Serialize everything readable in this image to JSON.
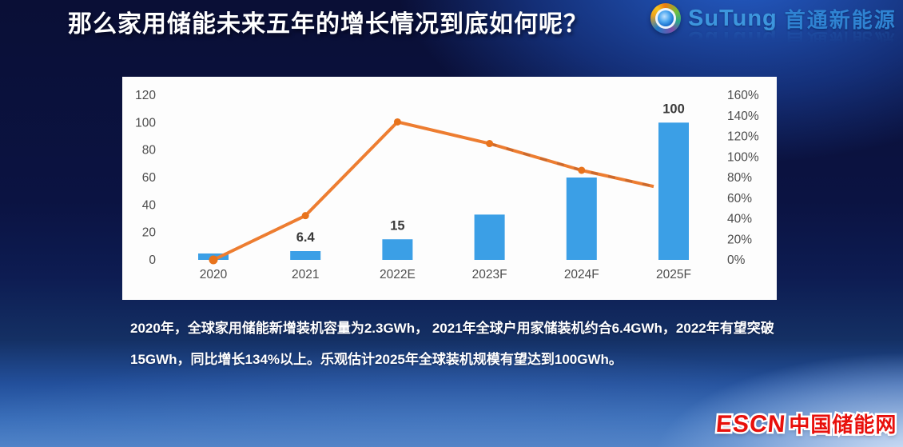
{
  "title": {
    "text": "那么家用储能未来五年的增长情况到底如何呢？"
  },
  "logo": {
    "icon": "sutung-swirl-icon",
    "brand_latin": "SuTung",
    "brand_cn": "首通新能源",
    "colors": {
      "latin": "#3d96dd",
      "cn": "#2f83d2"
    }
  },
  "chart_data": {
    "type": "bar",
    "subtype": "combo-bar-line",
    "categories": [
      "2020",
      "2021",
      "2022E",
      "2023F",
      "2024F",
      "2025F"
    ],
    "series": [
      {
        "kind": "bar",
        "axis": "left",
        "values": [
          2.3,
          6.4,
          15,
          33,
          60,
          100
        ],
        "data_labels": [
          "",
          "6.4",
          "15",
          "",
          "",
          "100"
        ],
        "color": "#3b9fe6"
      },
      {
        "kind": "line",
        "axis": "right",
        "unit": "%",
        "values": [
          0,
          43,
          134,
          113,
          87,
          67
        ],
        "color": "#ed7d31",
        "marker_color": "#e8731c"
      }
    ],
    "left_axis": {
      "min": 0,
      "max": 120,
      "ticks": [
        "120",
        "100",
        "80",
        "60",
        "40",
        "20",
        "0"
      ]
    },
    "right_axis": {
      "min": 0,
      "max": 160,
      "ticks": [
        "160%",
        "140%",
        "120%",
        "100%",
        "80%",
        "60%",
        "40%",
        "20%",
        "0%"
      ]
    },
    "grid": false,
    "legend": "none",
    "title": ""
  },
  "paragraph": {
    "lines": [
      "2020年，全球家用储能新增装机容量为2.3GWh， 2021年全球户用家储装机约合6.4GWh，2022年有望突破",
      "15GWh，同比增长134%以上。乐观估计2025年全球装机规模有望达到100GWh。"
    ]
  },
  "footer_logo": {
    "latin": "ESCN",
    "cn": "中国储能网",
    "color": "#e8100c"
  }
}
